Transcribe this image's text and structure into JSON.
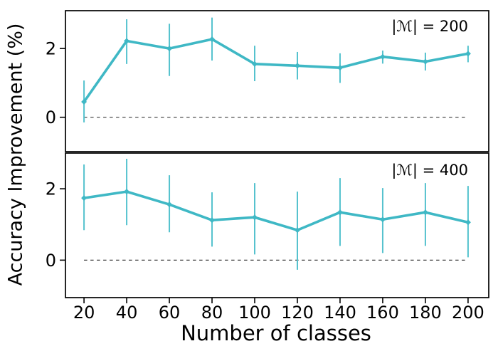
{
  "chart_data": {
    "type": "line",
    "title": "",
    "xlabel": "Number of classes",
    "ylabel": "Accuracy Improvement (%)",
    "x": [
      20,
      40,
      60,
      80,
      100,
      120,
      140,
      160,
      180,
      200
    ],
    "xticks": [
      20,
      40,
      60,
      80,
      100,
      120,
      140,
      160,
      180,
      200
    ],
    "xlim": [
      11.3,
      209.7
    ],
    "grid": false,
    "legend": "none",
    "panels": [
      {
        "label": "|ℳ| = 200",
        "series_name": "memory-size-200",
        "y": [
          0.45,
          2.22,
          2.0,
          2.27,
          1.55,
          1.5,
          1.44,
          1.76,
          1.62,
          1.85
        ],
        "err_min": [
          -0.15,
          1.55,
          1.2,
          1.65,
          1.05,
          1.1,
          1.0,
          1.56,
          1.36,
          1.6
        ],
        "err_max": [
          1.07,
          2.85,
          2.72,
          2.9,
          2.08,
          1.9,
          1.86,
          1.94,
          1.88,
          2.08
        ],
        "ylim": [
          -1.0,
          3.1
        ],
        "yticks": [
          0,
          2
        ],
        "zero_line_y": 0
      },
      {
        "label": "|ℳ| = 400",
        "series_name": "memory-size-400",
        "y": [
          1.74,
          1.92,
          1.56,
          1.12,
          1.2,
          0.84,
          1.34,
          1.14,
          1.34,
          1.06
        ],
        "err_min": [
          0.84,
          0.98,
          0.78,
          0.38,
          0.16,
          -0.27,
          0.4,
          0.2,
          0.4,
          0.08
        ],
        "err_max": [
          2.68,
          2.84,
          2.38,
          1.9,
          2.16,
          1.92,
          2.3,
          2.02,
          2.16,
          2.08
        ],
        "ylim": [
          -1.05,
          3.0
        ],
        "yticks": [
          0,
          2
        ],
        "zero_line_y": 0
      }
    ],
    "colors": {
      "line": "#3fb8c5",
      "errorbar": "#55c2ce",
      "zero_line": "#3a3a3a",
      "axis": "#000000",
      "text": "#000000"
    }
  }
}
